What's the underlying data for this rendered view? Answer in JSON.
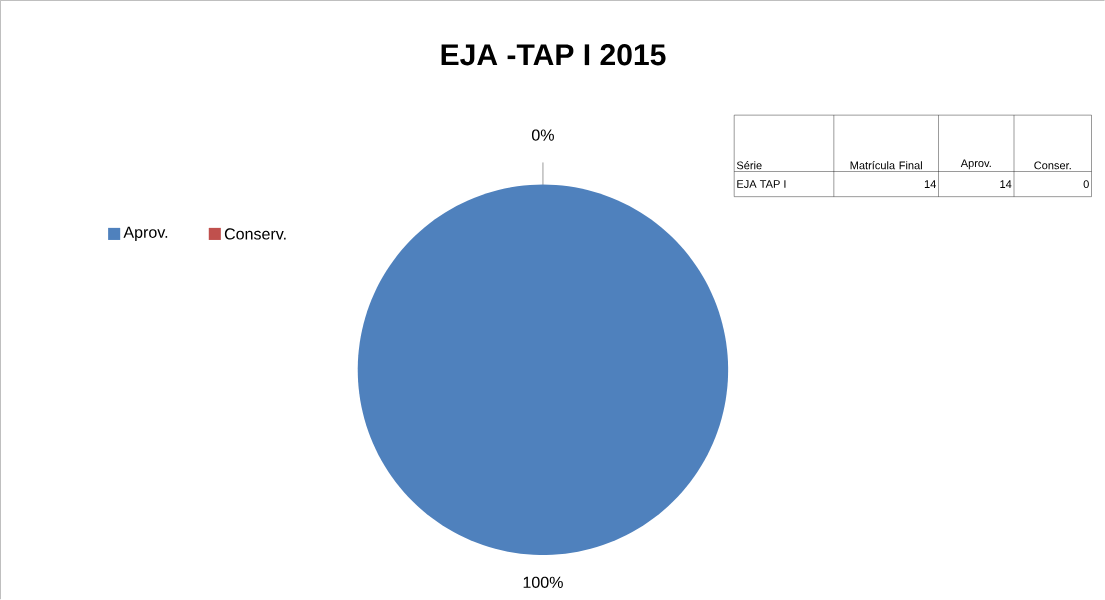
{
  "chart_data": {
    "type": "pie",
    "title": "EJA -TAP I 2015",
    "categories": [
      "Aprov.",
      "Conserv."
    ],
    "values": [
      100,
      0
    ],
    "colors": [
      "#4f81bd",
      "#c0504d"
    ],
    "value_labels": [
      "100%",
      "0%"
    ],
    "legend": "left",
    "annotations": [
      "Série",
      "Matrícula Final",
      "Aprov.",
      "Conser.",
      "EJA TAP I",
      "14",
      "14",
      "0"
    ]
  }
}
